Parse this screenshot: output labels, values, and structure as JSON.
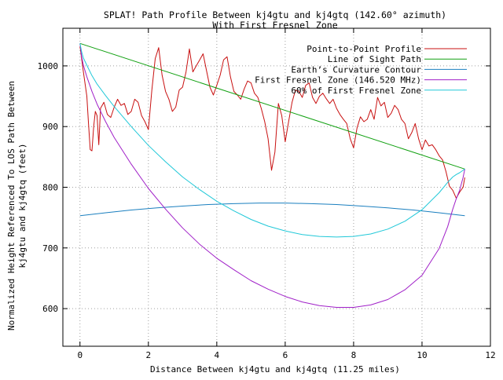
{
  "chart_data": {
    "type": "line",
    "title_line1": "SPLAT! Path Profile Between kj4gtu and kj4gtq (142.60° azimuth)",
    "title_line2": "With First Fresnel Zone",
    "xlabel": "Distance Between kj4gtu and kj4gtq (11.25 miles)",
    "ylabel_line1": "Normalized Height Referenced To LOS Path Between",
    "ylabel_line2": "kj4gtu and kj4gtq (feet)",
    "xlim": [
      -0.5,
      12
    ],
    "ylim": [
      538,
      1062
    ],
    "xticks": [
      0,
      2,
      4,
      6,
      8,
      10,
      12
    ],
    "yticks": [
      600,
      700,
      800,
      900,
      1000
    ],
    "grid": true,
    "legend_position": "top-right",
    "series": [
      {
        "name": "Point-to-Point Profile",
        "color": "#c81010",
        "x": [
          0,
          0.1,
          0.2,
          0.25,
          0.3,
          0.35,
          0.4,
          0.45,
          0.5,
          0.55,
          0.6,
          0.7,
          0.8,
          0.9,
          1.0,
          1.1,
          1.2,
          1.3,
          1.4,
          1.5,
          1.6,
          1.7,
          1.8,
          1.9,
          2.0,
          2.1,
          2.2,
          2.3,
          2.4,
          2.5,
          2.6,
          2.7,
          2.8,
          2.9,
          3.0,
          3.1,
          3.2,
          3.3,
          3.4,
          3.5,
          3.6,
          3.7,
          3.8,
          3.9,
          4.0,
          4.1,
          4.2,
          4.3,
          4.4,
          4.5,
          4.6,
          4.7,
          4.8,
          4.9,
          5.0,
          5.1,
          5.2,
          5.3,
          5.4,
          5.5,
          5.6,
          5.7,
          5.8,
          5.9,
          6.0,
          6.1,
          6.2,
          6.3,
          6.4,
          6.5,
          6.6,
          6.7,
          6.8,
          6.9,
          7.0,
          7.1,
          7.2,
          7.3,
          7.4,
          7.5,
          7.6,
          7.7,
          7.8,
          7.9,
          8.0,
          8.1,
          8.2,
          8.3,
          8.4,
          8.5,
          8.6,
          8.7,
          8.8,
          8.9,
          9.0,
          9.1,
          9.2,
          9.3,
          9.4,
          9.5,
          9.6,
          9.7,
          9.8,
          9.9,
          10.0,
          10.1,
          10.2,
          10.3,
          10.4,
          10.5,
          10.6,
          10.7,
          10.8,
          10.9,
          11.0,
          11.1,
          11.2,
          11.25
        ],
        "y": [
          1032,
          990,
          950,
          905,
          862,
          860,
          900,
          925,
          918,
          870,
          930,
          940,
          920,
          915,
          932,
          945,
          935,
          938,
          920,
          925,
          945,
          940,
          918,
          908,
          895,
          960,
          1012,
          1030,
          985,
          958,
          945,
          925,
          932,
          960,
          965,
          990,
          1028,
          990,
          1000,
          1010,
          1020,
          992,
          965,
          952,
          968,
          985,
          1010,
          1015,
          982,
          958,
          952,
          945,
          962,
          975,
          972,
          955,
          948,
          930,
          908,
          880,
          828,
          858,
          938,
          918,
          875,
          908,
          940,
          960,
          958,
          948,
          968,
          972,
          948,
          938,
          950,
          955,
          946,
          938,
          945,
          930,
          920,
          912,
          905,
          880,
          865,
          898,
          916,
          908,
          912,
          928,
          912,
          948,
          934,
          940,
          915,
          922,
          935,
          928,
          912,
          905,
          880,
          890,
          905,
          880,
          862,
          878,
          868,
          870,
          862,
          852,
          845,
          826,
          802,
          795,
          782,
          792,
          800,
          816
        ]
      },
      {
        "name": "Line of Sight Path",
        "color": "#10a010",
        "x": [
          0,
          11.25
        ],
        "y": [
          1037,
          830
        ]
      },
      {
        "name": "Earth’s Curvature Contour",
        "color": "#1a7fbf",
        "x": [
          0,
          0.75,
          1.5,
          2.25,
          3.0,
          3.75,
          4.5,
          5.25,
          6.0,
          6.75,
          7.5,
          8.25,
          9.0,
          9.75,
          10.5,
          11.25
        ],
        "y": [
          753,
          758,
          762.5,
          766,
          769,
          771.5,
          773,
          774,
          774,
          773,
          771.5,
          769,
          766,
          762.5,
          758,
          753
        ]
      },
      {
        "name": "First Fresnel Zone (146.520 MHz)",
        "color": "#a020c8",
        "x": [
          0,
          0.05,
          0.1,
          0.2,
          0.35,
          0.5,
          0.75,
          1.0,
          1.5,
          2.0,
          2.5,
          3.0,
          3.5,
          4.0,
          4.5,
          5.0,
          5.5,
          6.0,
          6.5,
          7.0,
          7.5,
          8.0,
          8.5,
          9.0,
          9.5,
          10.0,
          10.5,
          10.75,
          10.9,
          11.0,
          11.1,
          11.2,
          11.25
        ],
        "y": [
          1037,
          1015,
          1001,
          982,
          958,
          937,
          908,
          882,
          838,
          798,
          764,
          733,
          706,
          683,
          664,
          646,
          632,
          620,
          611,
          605,
          602,
          602,
          606,
          615,
          631,
          655,
          699,
          735,
          764,
          781,
          795,
          816,
          830
        ]
      },
      {
        "name": "60% of First Fresnel Zone",
        "color": "#20c8d8",
        "x": [
          0,
          0.05,
          0.1,
          0.2,
          0.35,
          0.5,
          0.75,
          1.0,
          1.5,
          2.0,
          2.5,
          3.0,
          3.5,
          4.0,
          4.5,
          5.0,
          5.5,
          6.0,
          6.5,
          7.0,
          7.5,
          8.0,
          8.5,
          9.0,
          9.5,
          10.0,
          10.5,
          10.75,
          10.9,
          11.0,
          11.1,
          11.2,
          11.25
        ],
        "y": [
          1037,
          1023,
          1013,
          1001,
          984,
          970,
          951,
          933,
          900,
          869,
          842,
          817,
          796,
          777,
          761,
          747,
          736,
          728,
          722,
          719,
          718,
          719,
          723,
          731,
          744,
          763,
          791,
          808,
          817,
          821,
          824,
          828,
          830
        ]
      }
    ]
  }
}
